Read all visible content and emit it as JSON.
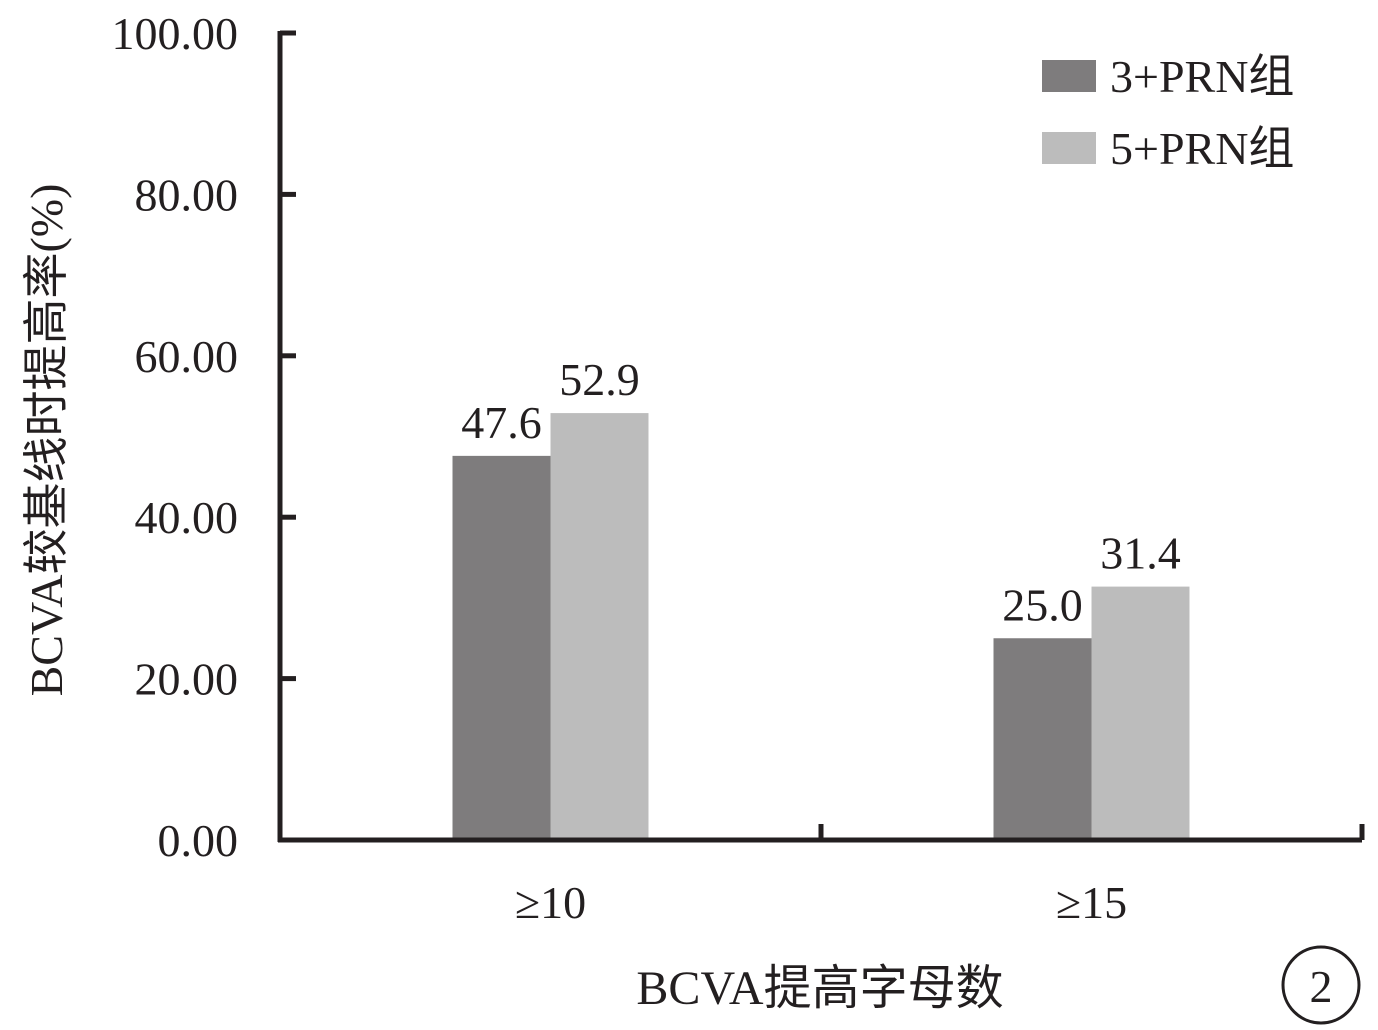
{
  "chart_data": {
    "type": "bar",
    "categories": [
      "≥10",
      "≥15"
    ],
    "series": [
      {
        "name": "3+PRN组",
        "values": [
          47.6,
          25.0
        ],
        "labels": [
          "47.6",
          "25.0"
        ],
        "color": "#7e7c7d"
      },
      {
        "name": "5+PRN组",
        "values": [
          52.9,
          31.4
        ],
        "labels": [
          "52.9",
          "31.4"
        ],
        "color": "#bcbcbc"
      }
    ],
    "xlabel": "BCVA提高字母数",
    "ylabel": "BCVA较基线时提高率(%)",
    "ylim": [
      0,
      100
    ],
    "yticks": [
      0,
      20,
      40,
      60,
      80,
      100
    ],
    "ytick_labels": [
      "0.00",
      "20.00",
      "40.00",
      "60.00",
      "80.00",
      "100.00"
    ],
    "legend_position": "top-right",
    "grid": false,
    "panel_label": "2"
  }
}
